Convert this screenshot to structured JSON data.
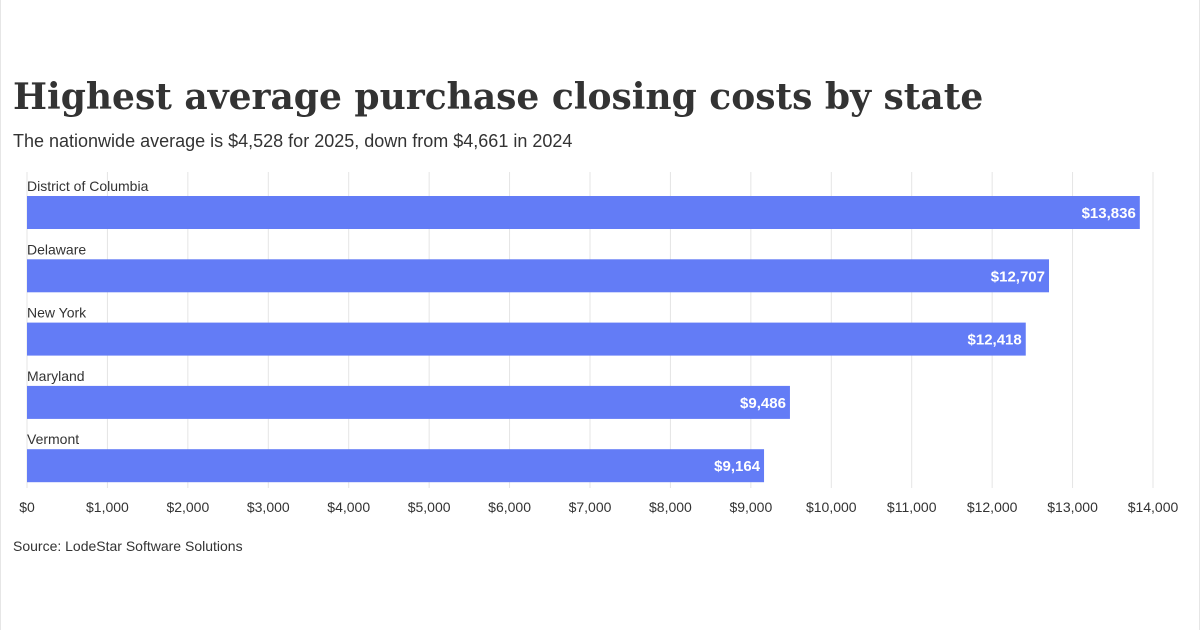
{
  "title": "Highest average purchase closing costs by state",
  "subtitle": "The nationwide average is $4,528 for 2025, down from $4,661 in 2024",
  "source": "Source: LodeStar Software Solutions",
  "colors": {
    "bar": "#637cf6",
    "bar_label": "#ffffff",
    "grid": "#e5e5e5",
    "text": "#333333"
  },
  "chart_data": {
    "type": "bar",
    "orientation": "horizontal",
    "title": "Highest average purchase closing costs by state",
    "subtitle": "The nationwide average is $4,528 for 2025, down from $4,661 in 2024",
    "xlabel": "",
    "ylabel": "",
    "categories": [
      "District of Columbia",
      "Delaware",
      "New York",
      "Maryland",
      "Vermont"
    ],
    "values": [
      13836,
      12707,
      12418,
      9486,
      9164
    ],
    "value_labels": [
      "$13,836",
      "$12,707",
      "$12,418",
      "$9,486",
      "$9,164"
    ],
    "xlim": [
      0,
      14000
    ],
    "x_ticks": [
      0,
      1000,
      2000,
      3000,
      4000,
      5000,
      6000,
      7000,
      8000,
      9000,
      10000,
      11000,
      12000,
      13000,
      14000
    ],
    "x_tick_labels": [
      "$0",
      "$1,000",
      "$2,000",
      "$3,000",
      "$4,000",
      "$5,000",
      "$6,000",
      "$7,000",
      "$8,000",
      "$9,000",
      "$10,000",
      "$11,000",
      "$12,000",
      "$13,000",
      "$14,000"
    ],
    "grid": true,
    "legend": "none"
  }
}
